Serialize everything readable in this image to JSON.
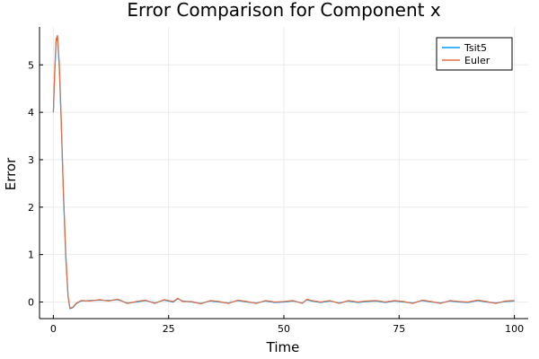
{
  "chart_data": {
    "type": "line",
    "title": "Error Comparison for Component x",
    "xlabel": "Time",
    "ylabel": "Error",
    "xlim": [
      -3,
      103
    ],
    "ylim": [
      -0.35,
      5.8
    ],
    "x_ticks": [
      0,
      25,
      50,
      75,
      100
    ],
    "y_ticks": [
      0,
      1,
      2,
      3,
      4,
      5
    ],
    "grid": true,
    "legend_position": "top-right",
    "series": [
      {
        "name": "Tsit5",
        "color": "#009af9",
        "points": [
          [
            0,
            4.0
          ],
          [
            0.3,
            4.8
          ],
          [
            0.6,
            5.5
          ],
          [
            0.9,
            5.6
          ],
          [
            1.3,
            4.9
          ],
          [
            1.7,
            3.8
          ],
          [
            2.2,
            2.2
          ],
          [
            2.7,
            0.9
          ],
          [
            3.2,
            0.1
          ],
          [
            3.6,
            -0.14
          ],
          [
            4.2,
            -0.12
          ],
          [
            5.0,
            -0.03
          ],
          [
            6.0,
            0.02
          ],
          [
            8,
            0.03
          ],
          [
            10,
            0.04
          ],
          [
            12,
            0.03
          ],
          [
            14,
            0.05
          ],
          [
            16,
            -0.02
          ],
          [
            18,
            0.0
          ],
          [
            20,
            0.03
          ],
          [
            22,
            -0.02
          ],
          [
            24,
            0.04
          ],
          [
            26,
            0.0
          ],
          [
            27,
            0.07
          ],
          [
            28,
            0.02
          ],
          [
            30,
            0.0
          ],
          [
            32,
            -0.03
          ],
          [
            34,
            0.02
          ],
          [
            36,
            0.0
          ],
          [
            38,
            -0.02
          ],
          [
            40,
            0.03
          ],
          [
            42,
            0.0
          ],
          [
            44,
            -0.02
          ],
          [
            46,
            0.02
          ],
          [
            48,
            -0.01
          ],
          [
            50,
            0.0
          ],
          [
            52,
            0.02
          ],
          [
            54,
            -0.02
          ],
          [
            55,
            0.05
          ],
          [
            56,
            0.02
          ],
          [
            58,
            -0.01
          ],
          [
            60,
            0.02
          ],
          [
            62,
            -0.02
          ],
          [
            64,
            0.02
          ],
          [
            66,
            -0.01
          ],
          [
            68,
            0.01
          ],
          [
            70,
            0.02
          ],
          [
            72,
            -0.01
          ],
          [
            74,
            0.02
          ],
          [
            76,
            0.0
          ],
          [
            78,
            -0.02
          ],
          [
            80,
            0.03
          ],
          [
            82,
            0.0
          ],
          [
            84,
            -0.02
          ],
          [
            86,
            0.02
          ],
          [
            88,
            0.0
          ],
          [
            90,
            -0.01
          ],
          [
            92,
            0.03
          ],
          [
            94,
            0.0
          ],
          [
            96,
            -0.02
          ],
          [
            98,
            0.01
          ],
          [
            100,
            0.02
          ]
        ]
      },
      {
        "name": "Euler",
        "color": "#e26f46",
        "points": [
          [
            0,
            4.0
          ],
          [
            0.3,
            4.9
          ],
          [
            0.6,
            5.55
          ],
          [
            0.9,
            5.62
          ],
          [
            1.3,
            5.0
          ],
          [
            1.7,
            3.9
          ],
          [
            2.2,
            2.3
          ],
          [
            2.7,
            1.0
          ],
          [
            3.2,
            0.12
          ],
          [
            3.6,
            -0.13
          ],
          [
            4.2,
            -0.11
          ],
          [
            5.0,
            -0.02
          ],
          [
            6.0,
            0.03
          ],
          [
            8,
            0.02
          ],
          [
            10,
            0.05
          ],
          [
            12,
            0.02
          ],
          [
            14,
            0.06
          ],
          [
            16,
            -0.03
          ],
          [
            18,
            0.01
          ],
          [
            20,
            0.04
          ],
          [
            22,
            -0.03
          ],
          [
            24,
            0.05
          ],
          [
            26,
            0.01
          ],
          [
            27,
            0.08
          ],
          [
            28,
            0.01
          ],
          [
            30,
            0.01
          ],
          [
            32,
            -0.04
          ],
          [
            34,
            0.03
          ],
          [
            36,
            0.01
          ],
          [
            38,
            -0.03
          ],
          [
            40,
            0.04
          ],
          [
            42,
            0.01
          ],
          [
            44,
            -0.03
          ],
          [
            46,
            0.03
          ],
          [
            48,
            0.0
          ],
          [
            50,
            0.01
          ],
          [
            52,
            0.03
          ],
          [
            54,
            -0.03
          ],
          [
            55,
            0.06
          ],
          [
            56,
            0.03
          ],
          [
            58,
            0.0
          ],
          [
            60,
            0.03
          ],
          [
            62,
            -0.03
          ],
          [
            64,
            0.03
          ],
          [
            66,
            0.0
          ],
          [
            68,
            0.02
          ],
          [
            70,
            0.03
          ],
          [
            72,
            0.0
          ],
          [
            74,
            0.03
          ],
          [
            76,
            0.01
          ],
          [
            78,
            -0.03
          ],
          [
            80,
            0.04
          ],
          [
            82,
            0.01
          ],
          [
            84,
            -0.03
          ],
          [
            86,
            0.03
          ],
          [
            88,
            0.01
          ],
          [
            90,
            0.0
          ],
          [
            92,
            0.04
          ],
          [
            94,
            0.01
          ],
          [
            96,
            -0.03
          ],
          [
            98,
            0.02
          ],
          [
            100,
            0.03
          ]
        ]
      }
    ]
  }
}
